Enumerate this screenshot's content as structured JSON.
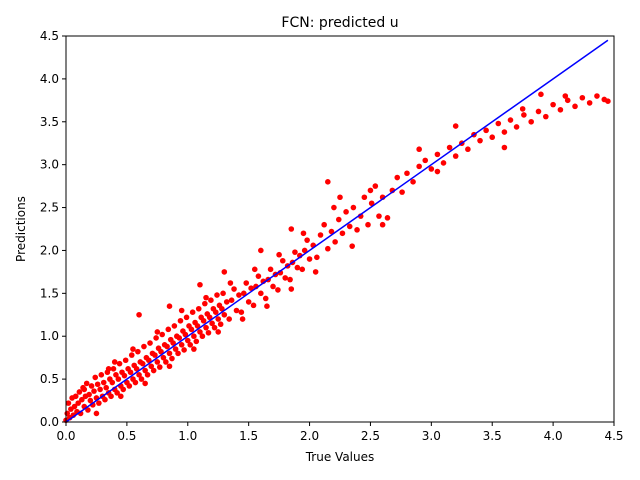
{
  "chart_data": {
    "type": "scatter",
    "title": "FCN: predicted u",
    "xlabel": "True Values",
    "ylabel": "Predictions",
    "xlim": [
      0,
      4.5
    ],
    "ylim": [
      0,
      4.5
    ],
    "xticks": [
      "0.0",
      "0.5",
      "1.0",
      "1.5",
      "2.0",
      "2.5",
      "3.0",
      "3.5",
      "4.0",
      "4.5"
    ],
    "yticks": [
      "0.0",
      "0.5",
      "1.0",
      "1.5",
      "2.0",
      "2.5",
      "3.0",
      "3.5",
      "4.0",
      "4.5"
    ],
    "grid": false,
    "point_color": "#ff0000",
    "line_color": "#0000ff",
    "reference_line": {
      "x": [
        0,
        4.45
      ],
      "y": [
        0,
        4.45
      ]
    },
    "series": [
      {
        "values": [
          [
            0.0,
            0.02
          ],
          [
            0.01,
            0.1
          ],
          [
            0.02,
            0.22
          ],
          [
            0.03,
            0.05
          ],
          [
            0.04,
            0.15
          ],
          [
            0.05,
            0.28
          ],
          [
            0.06,
            0.08
          ],
          [
            0.07,
            0.18
          ],
          [
            0.08,
            0.3
          ],
          [
            0.09,
            0.12
          ],
          [
            0.1,
            0.22
          ],
          [
            0.11,
            0.35
          ],
          [
            0.12,
            0.1
          ],
          [
            0.13,
            0.26
          ],
          [
            0.14,
            0.4
          ],
          [
            0.15,
            0.18
          ],
          [
            0.16,
            0.3
          ],
          [
            0.17,
            0.45
          ],
          [
            0.18,
            0.14
          ],
          [
            0.19,
            0.32
          ],
          [
            0.2,
            0.25
          ],
          [
            0.21,
            0.42
          ],
          [
            0.22,
            0.2
          ],
          [
            0.23,
            0.36
          ],
          [
            0.24,
            0.52
          ],
          [
            0.25,
            0.28
          ],
          [
            0.26,
            0.44
          ],
          [
            0.27,
            0.22
          ],
          [
            0.28,
            0.38
          ],
          [
            0.29,
            0.55
          ],
          [
            0.3,
            0.3
          ],
          [
            0.31,
            0.46
          ],
          [
            0.32,
            0.26
          ],
          [
            0.33,
            0.4
          ],
          [
            0.34,
            0.58
          ],
          [
            0.35,
            0.34
          ],
          [
            0.36,
            0.5
          ],
          [
            0.37,
            0.3
          ],
          [
            0.38,
            0.46
          ],
          [
            0.39,
            0.62
          ],
          [
            0.4,
            0.38
          ],
          [
            0.41,
            0.55
          ],
          [
            0.42,
            0.34
          ],
          [
            0.43,
            0.5
          ],
          [
            0.44,
            0.68
          ],
          [
            0.45,
            0.42
          ],
          [
            0.46,
            0.58
          ],
          [
            0.47,
            0.38
          ],
          [
            0.48,
            0.54
          ],
          [
            0.49,
            0.72
          ],
          [
            0.5,
            0.46
          ],
          [
            0.51,
            0.62
          ],
          [
            0.52,
            0.42
          ],
          [
            0.53,
            0.58
          ],
          [
            0.54,
            0.78
          ],
          [
            0.55,
            0.5
          ],
          [
            0.56,
            0.66
          ],
          [
            0.57,
            0.46
          ],
          [
            0.58,
            0.62
          ],
          [
            0.59,
            0.82
          ],
          [
            0.6,
            0.55
          ],
          [
            0.61,
            0.7
          ],
          [
            0.62,
            0.5
          ],
          [
            0.63,
            0.68
          ],
          [
            0.64,
            0.88
          ],
          [
            0.65,
            0.6
          ],
          [
            0.66,
            0.75
          ],
          [
            0.67,
            0.55
          ],
          [
            0.68,
            0.72
          ],
          [
            0.69,
            0.92
          ],
          [
            0.7,
            0.65
          ],
          [
            0.71,
            0.8
          ],
          [
            0.72,
            0.6
          ],
          [
            0.73,
            0.78
          ],
          [
            0.74,
            0.98
          ],
          [
            0.75,
            0.7
          ],
          [
            0.76,
            0.86
          ],
          [
            0.77,
            0.64
          ],
          [
            0.78,
            0.82
          ],
          [
            0.79,
            1.02
          ],
          [
            0.8,
            0.75
          ],
          [
            0.81,
            0.9
          ],
          [
            0.82,
            0.7
          ],
          [
            0.83,
            0.88
          ],
          [
            0.84,
            1.08
          ],
          [
            0.85,
            0.8
          ],
          [
            0.86,
            0.96
          ],
          [
            0.87,
            0.74
          ],
          [
            0.88,
            0.92
          ],
          [
            0.89,
            1.12
          ],
          [
            0.9,
            0.85
          ],
          [
            0.91,
            1.0
          ],
          [
            0.92,
            0.8
          ],
          [
            0.93,
            0.98
          ],
          [
            0.94,
            1.18
          ],
          [
            0.95,
            0.9
          ],
          [
            0.96,
            1.06
          ],
          [
            0.97,
            0.84
          ],
          [
            0.98,
            1.02
          ],
          [
            0.99,
            1.22
          ],
          [
            1.0,
            0.95
          ],
          [
            1.01,
            1.12
          ],
          [
            1.02,
            0.9
          ],
          [
            1.03,
            1.08
          ],
          [
            1.04,
            1.28
          ],
          [
            1.05,
            1.0
          ],
          [
            1.06,
            1.16
          ],
          [
            1.07,
            0.94
          ],
          [
            1.08,
            1.12
          ],
          [
            1.09,
            1.32
          ],
          [
            1.1,
            1.05
          ],
          [
            1.11,
            1.22
          ],
          [
            1.12,
            1.0
          ],
          [
            1.13,
            1.18
          ],
          [
            1.14,
            1.38
          ],
          [
            1.15,
            1.1
          ],
          [
            1.16,
            1.26
          ],
          [
            1.17,
            1.04
          ],
          [
            1.18,
            1.22
          ],
          [
            1.19,
            1.42
          ],
          [
            1.2,
            1.15
          ],
          [
            1.21,
            1.32
          ],
          [
            1.22,
            1.1
          ],
          [
            1.23,
            1.28
          ],
          [
            1.24,
            1.48
          ],
          [
            1.25,
            1.2
          ],
          [
            1.26,
            1.36
          ],
          [
            1.27,
            1.14
          ],
          [
            1.28,
            1.32
          ],
          [
            1.29,
            1.5
          ],
          [
            1.3,
            1.25
          ],
          [
            1.32,
            1.4
          ],
          [
            1.34,
            1.2
          ],
          [
            1.36,
            1.42
          ],
          [
            1.38,
            1.55
          ],
          [
            1.4,
            1.3
          ],
          [
            1.42,
            1.48
          ],
          [
            1.44,
            1.28
          ],
          [
            1.46,
            1.5
          ],
          [
            1.48,
            1.62
          ],
          [
            1.5,
            1.4
          ],
          [
            1.52,
            1.56
          ],
          [
            1.54,
            1.36
          ],
          [
            1.56,
            1.58
          ],
          [
            1.58,
            1.7
          ],
          [
            1.6,
            1.5
          ],
          [
            1.62,
            1.64
          ],
          [
            1.64,
            1.44
          ],
          [
            1.66,
            1.66
          ],
          [
            1.68,
            1.78
          ],
          [
            1.7,
            1.58
          ],
          [
            1.72,
            1.72
          ],
          [
            1.74,
            1.54
          ],
          [
            1.76,
            1.74
          ],
          [
            1.78,
            1.88
          ],
          [
            1.8,
            1.68
          ],
          [
            1.82,
            1.82
          ],
          [
            1.84,
            1.66
          ],
          [
            1.86,
            1.86
          ],
          [
            1.88,
            1.98
          ],
          [
            1.9,
            1.8
          ],
          [
            1.92,
            1.94
          ],
          [
            1.94,
            1.78
          ],
          [
            1.96,
            2.0
          ],
          [
            1.98,
            2.12
          ],
          [
            2.0,
            1.9
          ],
          [
            2.03,
            2.06
          ],
          [
            2.06,
            1.92
          ],
          [
            2.09,
            2.18
          ],
          [
            2.12,
            2.3
          ],
          [
            2.15,
            2.02
          ],
          [
            2.18,
            2.22
          ],
          [
            2.21,
            2.1
          ],
          [
            2.24,
            2.36
          ],
          [
            2.27,
            2.2
          ],
          [
            2.3,
            2.45
          ],
          [
            2.33,
            2.28
          ],
          [
            2.36,
            2.5
          ],
          [
            2.39,
            2.24
          ],
          [
            2.42,
            2.4
          ],
          [
            2.45,
            2.62
          ],
          [
            2.48,
            2.3
          ],
          [
            2.51,
            2.55
          ],
          [
            2.54,
            2.75
          ],
          [
            2.57,
            2.4
          ],
          [
            2.6,
            2.62
          ],
          [
            2.64,
            2.38
          ],
          [
            2.68,
            2.7
          ],
          [
            2.72,
            2.85
          ],
          [
            2.76,
            2.68
          ],
          [
            2.8,
            2.9
          ],
          [
            2.85,
            2.8
          ],
          [
            2.9,
            2.98
          ],
          [
            2.95,
            3.05
          ],
          [
            3.0,
            2.95
          ],
          [
            3.05,
            3.12
          ],
          [
            3.1,
            3.02
          ],
          [
            3.15,
            3.2
          ],
          [
            3.2,
            3.1
          ],
          [
            3.25,
            3.25
          ],
          [
            3.3,
            3.18
          ],
          [
            3.35,
            3.35
          ],
          [
            3.4,
            3.28
          ],
          [
            3.45,
            3.4
          ],
          [
            3.5,
            3.32
          ],
          [
            3.55,
            3.48
          ],
          [
            3.6,
            3.38
          ],
          [
            3.65,
            3.52
          ],
          [
            3.7,
            3.44
          ],
          [
            3.76,
            3.58
          ],
          [
            3.82,
            3.5
          ],
          [
            3.88,
            3.62
          ],
          [
            3.94,
            3.56
          ],
          [
            4.0,
            3.7
          ],
          [
            4.06,
            3.64
          ],
          [
            4.12,
            3.75
          ],
          [
            4.18,
            3.68
          ],
          [
            4.24,
            3.78
          ],
          [
            4.3,
            3.72
          ],
          [
            4.36,
            3.8
          ],
          [
            4.42,
            3.76
          ],
          [
            4.45,
            3.74
          ],
          [
            0.15,
            0.38
          ],
          [
            0.25,
            0.1
          ],
          [
            0.35,
            0.62
          ],
          [
            0.45,
            0.3
          ],
          [
            0.55,
            0.85
          ],
          [
            0.65,
            0.45
          ],
          [
            0.75,
            1.05
          ],
          [
            0.85,
            0.65
          ],
          [
            0.95,
            1.3
          ],
          [
            1.05,
            0.85
          ],
          [
            1.15,
            1.45
          ],
          [
            1.25,
            1.05
          ],
          [
            1.35,
            1.62
          ],
          [
            1.45,
            1.2
          ],
          [
            1.55,
            1.78
          ],
          [
            1.65,
            1.35
          ],
          [
            1.75,
            1.95
          ],
          [
            1.85,
            1.55
          ],
          [
            1.95,
            2.2
          ],
          [
            2.05,
            1.75
          ],
          [
            2.2,
            2.5
          ],
          [
            2.35,
            2.05
          ],
          [
            2.5,
            2.7
          ],
          [
            2.6,
            2.3
          ],
          [
            2.15,
            2.8
          ],
          [
            1.3,
            1.75
          ],
          [
            1.1,
            1.6
          ],
          [
            0.6,
            1.25
          ],
          [
            0.85,
            1.35
          ],
          [
            3.2,
            3.45
          ],
          [
            3.6,
            3.2
          ],
          [
            3.9,
            3.82
          ],
          [
            4.1,
            3.8
          ],
          [
            3.75,
            3.65
          ],
          [
            2.25,
            2.62
          ],
          [
            1.85,
            2.25
          ],
          [
            1.6,
            2.0
          ],
          [
            2.9,
            3.18
          ],
          [
            3.05,
            2.92
          ],
          [
            0.4,
            0.7
          ]
        ]
      }
    ]
  }
}
